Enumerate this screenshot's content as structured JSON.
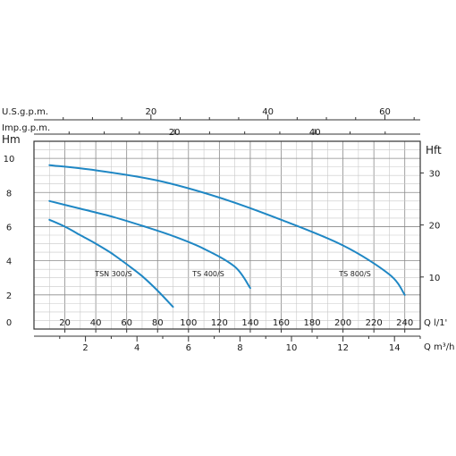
{
  "chart_data": {
    "type": "line",
    "x": [
      0,
      20,
      40,
      60,
      80,
      100,
      120,
      140,
      160,
      180,
      200,
      220,
      240
    ],
    "xlabel": "Q l/1'",
    "ylabel": "Hm",
    "ylabel_right": "Hft",
    "xlim": [
      0,
      250
    ],
    "ylim": [
      0,
      11
    ],
    "y_ticks": [
      2,
      4,
      6,
      8,
      10
    ],
    "y_ticks_right": [
      10,
      20,
      30
    ],
    "x_axis_m3h": {
      "label": "Q m³/h",
      "ticks": [
        2,
        4,
        6,
        8,
        10,
        12,
        14
      ]
    },
    "x_axis_usgpm": {
      "label": "U.S.g.p.m.",
      "ticks": [
        20,
        40,
        60
      ]
    },
    "x_axis_impgpm": {
      "label": "Imp.g.p.m.",
      "ticks": [
        20,
        40
      ]
    },
    "grid": true,
    "legend": "none",
    "series": [
      {
        "name": "TSN 300/S",
        "color": "#1f87c4",
        "points": [
          [
            10,
            6.4
          ],
          [
            20,
            6.0
          ],
          [
            30,
            5.5
          ],
          [
            40,
            5.0
          ],
          [
            50,
            4.45
          ],
          [
            60,
            3.8
          ],
          [
            70,
            3.1
          ],
          [
            80,
            2.25
          ],
          [
            90,
            1.3
          ]
        ]
      },
      {
        "name": "TS 400/S",
        "color": "#1f87c4",
        "points": [
          [
            10,
            7.5
          ],
          [
            30,
            7.05
          ],
          [
            50,
            6.6
          ],
          [
            70,
            6.05
          ],
          [
            90,
            5.45
          ],
          [
            110,
            4.7
          ],
          [
            130,
            3.65
          ],
          [
            140,
            2.4
          ]
        ]
      },
      {
        "name": "TS 800/S",
        "color": "#1f87c4",
        "points": [
          [
            10,
            9.6
          ],
          [
            40,
            9.3
          ],
          [
            80,
            8.7
          ],
          [
            120,
            7.7
          ],
          [
            160,
            6.4
          ],
          [
            200,
            4.9
          ],
          [
            230,
            3.2
          ],
          [
            240,
            2.0
          ]
        ]
      }
    ]
  }
}
